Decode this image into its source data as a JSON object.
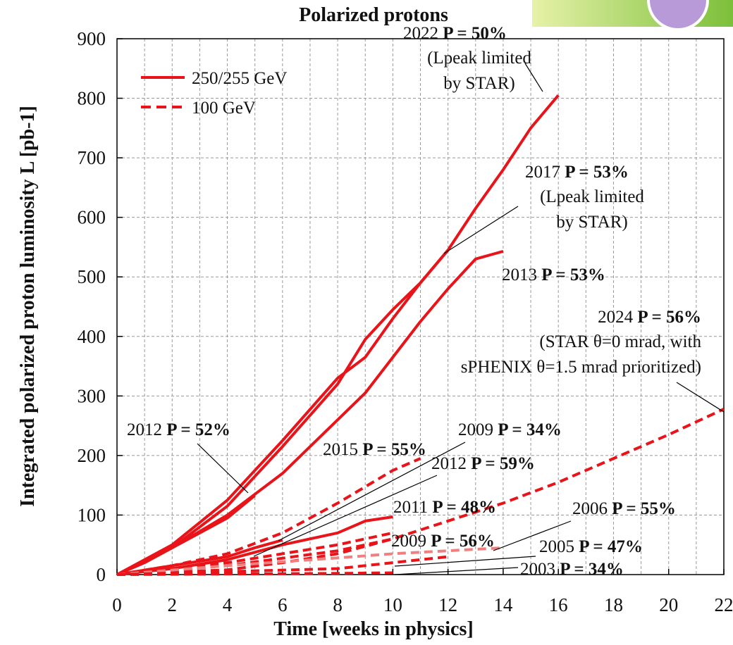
{
  "chart_data": {
    "type": "line",
    "title": "Polarized protons",
    "x_label": "Time [weeks in physics]",
    "y_label": "Integrated polarized proton luminosity L [pb-1]",
    "xlim": [
      0,
      22
    ],
    "xticks": [
      0,
      2,
      4,
      6,
      8,
      10,
      12,
      14,
      16,
      18,
      20,
      22
    ],
    "xminorticks": [
      1,
      3,
      5,
      7,
      9,
      11,
      13,
      15,
      17,
      19,
      21
    ],
    "ylim": [
      0,
      900
    ],
    "yticks": [
      0,
      100,
      200,
      300,
      400,
      500,
      600,
      700,
      800,
      900
    ],
    "grid": true,
    "legend_position": "upper-left",
    "legend": [
      {
        "label": "250/255 GeV",
        "dashed": false
      },
      {
        "label": "100 GeV",
        "dashed": true
      }
    ],
    "series": [
      {
        "year": "2022",
        "polarization": "P = 50%",
        "note": [
          "(Lpeak limited",
          "by STAR)"
        ],
        "color": "#e8141a",
        "dashed": false,
        "x": [
          0,
          2,
          4,
          6,
          8,
          9,
          10,
          11,
          12,
          13,
          14,
          15,
          16
        ],
        "values": [
          0,
          45,
          115,
          215,
          320,
          395,
          445,
          490,
          545,
          615,
          680,
          750,
          805
        ]
      },
      {
        "year": "2017",
        "polarization": "P = 53%",
        "note": [
          "(Lpeak limited",
          "by STAR)"
        ],
        "color": "#e8141a",
        "dashed": false,
        "x": [
          0,
          2,
          4,
          6,
          8,
          9,
          10,
          11,
          12
        ],
        "values": [
          0,
          50,
          125,
          225,
          330,
          365,
          430,
          490,
          545
        ]
      },
      {
        "year": "2013",
        "polarization": "P = 53%",
        "color": "#e8141a",
        "dashed": false,
        "x": [
          0,
          2,
          4,
          6,
          8,
          9,
          10,
          11,
          12,
          13,
          14
        ],
        "values": [
          0,
          45,
          100,
          170,
          260,
          305,
          365,
          425,
          480,
          530,
          543
        ]
      },
      {
        "year": "2012",
        "polarization": "P = 52%",
        "color": "#e8141a",
        "dashed": false,
        "x": [
          0,
          1,
          2,
          3,
          4,
          5
        ],
        "values": [
          0,
          20,
          45,
          70,
          95,
          133
        ]
      },
      {
        "year": "2011",
        "polarization": "P = 48%",
        "color": "#e8141a",
        "dashed": false,
        "x": [
          0,
          2,
          4,
          6,
          8,
          9,
          10
        ],
        "values": [
          0,
          10,
          25,
          50,
          70,
          90,
          97
        ]
      },
      {
        "year": "2009",
        "polarization": "P = 34%",
        "color": "#e8141a",
        "dashed": false,
        "x": [
          0,
          2,
          4,
          5,
          6
        ],
        "values": [
          0,
          15,
          30,
          45,
          58
        ]
      },
      {
        "year": "2024",
        "polarization": "P = 56%",
        "note": [
          "(STAR θ=0 mrad, with",
          "sPHENIX θ=1.5 mrad prioritized)"
        ],
        "color": "#e8141a",
        "dashed": true,
        "x": [
          0,
          4,
          8,
          10,
          12,
          14,
          16,
          18,
          20,
          22
        ],
        "values": [
          0,
          15,
          40,
          60,
          90,
          120,
          155,
          195,
          235,
          278
        ]
      },
      {
        "year": "2015",
        "polarization": "P = 55%",
        "color": "#e8141a",
        "dashed": true,
        "x": [
          0,
          2,
          4,
          6,
          8,
          10,
          11
        ],
        "values": [
          0,
          15,
          35,
          70,
          120,
          175,
          195
        ]
      },
      {
        "year": "2012",
        "polarization": "P = 59%",
        "color": "#e8141a",
        "dashed": true,
        "x": [
          0,
          2,
          4,
          6,
          8,
          10
        ],
        "values": [
          0,
          10,
          20,
          35,
          50,
          70
        ]
      },
      {
        "year": "2009",
        "polarization": "P = 56%",
        "color": "#e8141a",
        "dashed": true,
        "x": [
          0,
          4,
          6,
          8,
          10
        ],
        "values": [
          0,
          8,
          20,
          35,
          60
        ]
      },
      {
        "year": "2006",
        "polarization": "P = 55%",
        "color": "#f08080",
        "dashed": true,
        "x": [
          0,
          4,
          8,
          10,
          12,
          14
        ],
        "values": [
          0,
          15,
          28,
          35,
          40,
          45
        ]
      },
      {
        "year": "2005",
        "polarization": "P = 47%",
        "color": "#e8141a",
        "dashed": true,
        "x": [
          0,
          4,
          8,
          10,
          12
        ],
        "values": [
          0,
          5,
          10,
          20,
          30
        ]
      },
      {
        "year": "2003",
        "polarization": "P = 34%",
        "color": "#e8141a",
        "dashed": true,
        "x": [
          0,
          4,
          8,
          10
        ],
        "values": [
          0,
          1,
          2,
          3
        ]
      }
    ]
  }
}
